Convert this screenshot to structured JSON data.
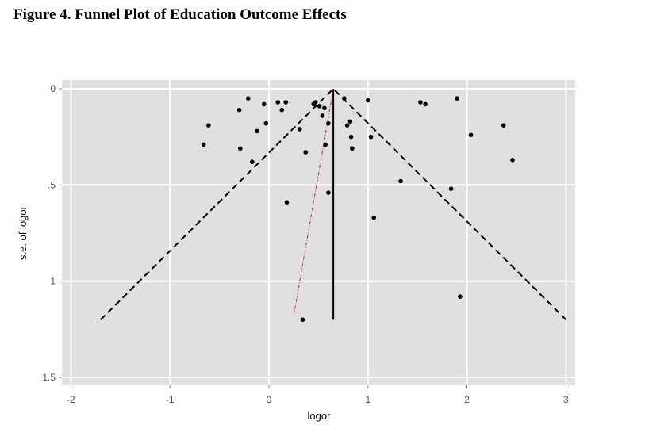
{
  "figure": {
    "title": "Figure 4. Funnel Plot of Education Outcome Effects"
  },
  "chart_data": {
    "type": "scatter",
    "xlabel": "logor",
    "ylabel": "s.e. of logor",
    "xlim": [
      -2.1,
      3.1
    ],
    "ylim": [
      0,
      1.5
    ],
    "y_reversed": true,
    "x_ticks": [
      -2,
      -1,
      0,
      1,
      2,
      3
    ],
    "x_tick_labels": [
      "-2",
      "-1",
      "0",
      "1",
      "2",
      "3"
    ],
    "y_ticks": [
      0,
      0.5,
      1,
      1.5
    ],
    "y_tick_labels": [
      "0",
      ".5",
      "1",
      "1.5"
    ],
    "grid": true,
    "background": "#e0e0e0",
    "point_color": "#000000",
    "pooled_effect": 0.65,
    "funnel": {
      "apex": [
        0.65,
        0
      ],
      "left_base": [
        -1.7,
        1.2
      ],
      "right_base": [
        3.0,
        1.2
      ]
    },
    "regression_line": {
      "from": [
        0.25,
        1.18
      ],
      "to": [
        0.65,
        0
      ],
      "color": "#b03030"
    },
    "points": [
      [
        -0.66,
        0.29
      ],
      [
        -0.61,
        0.19
      ],
      [
        -0.3,
        0.11
      ],
      [
        -0.29,
        0.31
      ],
      [
        -0.21,
        0.05
      ],
      [
        -0.17,
        0.38
      ],
      [
        -0.12,
        0.22
      ],
      [
        -0.05,
        0.08
      ],
      [
        -0.03,
        0.18
      ],
      [
        0.09,
        0.07
      ],
      [
        0.13,
        0.11
      ],
      [
        0.17,
        0.07
      ],
      [
        0.18,
        0.59
      ],
      [
        0.31,
        0.21
      ],
      [
        0.34,
        1.2
      ],
      [
        0.37,
        0.33
      ],
      [
        0.45,
        0.08
      ],
      [
        0.47,
        0.07
      ],
      [
        0.51,
        0.09
      ],
      [
        0.54,
        0.14
      ],
      [
        0.56,
        0.1
      ],
      [
        0.57,
        0.29
      ],
      [
        0.6,
        0.18
      ],
      [
        0.6,
        0.54
      ],
      [
        0.76,
        0.05
      ],
      [
        0.79,
        0.19
      ],
      [
        0.82,
        0.17
      ],
      [
        0.83,
        0.25
      ],
      [
        0.84,
        0.31
      ],
      [
        1.0,
        0.06
      ],
      [
        1.03,
        0.25
      ],
      [
        1.06,
        0.67
      ],
      [
        1.33,
        0.48
      ],
      [
        1.53,
        0.07
      ],
      [
        1.58,
        0.08
      ],
      [
        1.84,
        0.52
      ],
      [
        1.9,
        0.05
      ],
      [
        1.93,
        1.08
      ],
      [
        2.04,
        0.24
      ],
      [
        2.37,
        0.19
      ],
      [
        2.46,
        0.37
      ]
    ]
  }
}
